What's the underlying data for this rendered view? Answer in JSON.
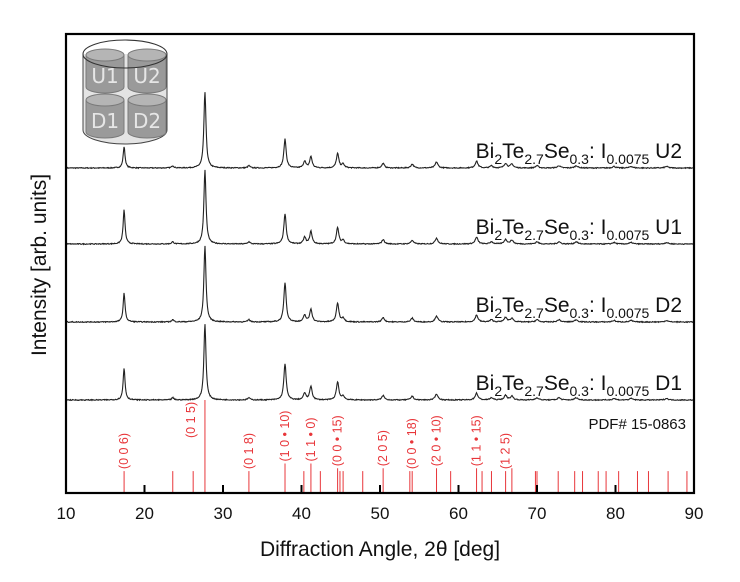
{
  "chart_data": {
    "type": "line",
    "title": "",
    "xlabel": "Diffraction Angle, 2θ [deg]",
    "ylabel": "Intensity [arb. units]",
    "xlim": [
      10,
      90
    ],
    "xticks": [
      10,
      20,
      30,
      40,
      50,
      60,
      70,
      80,
      90
    ],
    "grid": false,
    "series": [
      {
        "name": "U2",
        "label": {
          "base": "Bi",
          "s1": "2",
          "t": "Te",
          "s2": "2.7",
          "se": "Se",
          "s3": "0.3",
          "sep": ": I",
          "s4": "0.0075",
          "tag": "U2"
        },
        "peaks": [
          [
            17.4,
            0.28
          ],
          [
            23.6,
            0.03
          ],
          [
            27.7,
            1.0
          ],
          [
            33.3,
            0.03
          ],
          [
            37.9,
            0.38
          ],
          [
            40.4,
            0.09
          ],
          [
            41.2,
            0.15
          ],
          [
            44.6,
            0.19
          ],
          [
            45.3,
            0.05
          ],
          [
            50.4,
            0.06
          ],
          [
            54.1,
            0.05
          ],
          [
            57.2,
            0.08
          ],
          [
            62.3,
            0.09
          ],
          [
            64.2,
            0.03
          ],
          [
            66.0,
            0.06
          ],
          [
            66.8,
            0.05
          ],
          [
            70.0,
            0.03
          ],
          [
            72.8,
            0.03
          ],
          [
            75.0,
            0.03
          ],
          [
            79.8,
            0.02
          ],
          [
            82.0,
            0.02
          ],
          [
            86.5,
            0.02
          ]
        ]
      },
      {
        "name": "U1",
        "label": {
          "base": "Bi",
          "s1": "2",
          "t": "Te",
          "s2": "2.7",
          "se": "Se",
          "s3": "0.3",
          "sep": ": I",
          "s4": "0.0075",
          "tag": "U1"
        },
        "peaks": [
          [
            17.4,
            0.46
          ],
          [
            23.6,
            0.03
          ],
          [
            27.7,
            1.0
          ],
          [
            33.3,
            0.03
          ],
          [
            37.9,
            0.41
          ],
          [
            40.4,
            0.09
          ],
          [
            41.2,
            0.17
          ],
          [
            44.6,
            0.22
          ],
          [
            45.3,
            0.05
          ],
          [
            50.4,
            0.06
          ],
          [
            54.1,
            0.05
          ],
          [
            57.2,
            0.08
          ],
          [
            62.3,
            0.09
          ],
          [
            64.2,
            0.03
          ],
          [
            66.0,
            0.06
          ],
          [
            66.8,
            0.05
          ],
          [
            70.0,
            0.03
          ],
          [
            72.8,
            0.03
          ],
          [
            75.0,
            0.03
          ],
          [
            79.8,
            0.02
          ],
          [
            82.0,
            0.02
          ],
          [
            86.5,
            0.02
          ]
        ]
      },
      {
        "name": "D2",
        "label": {
          "base": "Bi",
          "s1": "2",
          "t": "Te",
          "s2": "2.7",
          "se": "Se",
          "s3": "0.3",
          "sep": ": I",
          "s4": "0.0075",
          "tag": "D2"
        },
        "peaks": [
          [
            17.4,
            0.38
          ],
          [
            23.6,
            0.03
          ],
          [
            27.7,
            1.0
          ],
          [
            33.3,
            0.03
          ],
          [
            37.9,
            0.52
          ],
          [
            40.4,
            0.09
          ],
          [
            41.2,
            0.17
          ],
          [
            44.6,
            0.25
          ],
          [
            45.3,
            0.05
          ],
          [
            50.4,
            0.06
          ],
          [
            54.1,
            0.05
          ],
          [
            57.2,
            0.08
          ],
          [
            62.3,
            0.09
          ],
          [
            64.2,
            0.03
          ],
          [
            66.0,
            0.06
          ],
          [
            66.8,
            0.05
          ],
          [
            70.0,
            0.03
          ],
          [
            72.8,
            0.03
          ],
          [
            75.0,
            0.03
          ],
          [
            79.8,
            0.02
          ],
          [
            82.0,
            0.02
          ],
          [
            86.5,
            0.02
          ]
        ]
      },
      {
        "name": "D1",
        "label": {
          "base": "Bi",
          "s1": "2",
          "t": "Te",
          "s2": "2.7",
          "se": "Se",
          "s3": "0.3",
          "sep": ": I",
          "s4": "0.0075",
          "tag": "D1"
        },
        "peaks": [
          [
            17.4,
            0.42
          ],
          [
            23.6,
            0.03
          ],
          [
            27.7,
            1.0
          ],
          [
            33.3,
            0.03
          ],
          [
            37.9,
            0.48
          ],
          [
            40.4,
            0.09
          ],
          [
            41.2,
            0.18
          ],
          [
            44.6,
            0.24
          ],
          [
            45.3,
            0.05
          ],
          [
            50.4,
            0.06
          ],
          [
            54.1,
            0.05
          ],
          [
            57.2,
            0.08
          ],
          [
            62.3,
            0.09
          ],
          [
            64.2,
            0.03
          ],
          [
            66.0,
            0.06
          ],
          [
            66.8,
            0.05
          ],
          [
            70.0,
            0.03
          ],
          [
            72.8,
            0.03
          ],
          [
            75.0,
            0.03
          ],
          [
            79.8,
            0.02
          ],
          [
            82.0,
            0.02
          ],
          [
            86.5,
            0.02
          ]
        ]
      }
    ],
    "reference": {
      "name": "PDF# 15-0863",
      "color": "#e8363a",
      "lines": [
        [
          17.4,
          0.22
        ],
        [
          23.6,
          0.22
        ],
        [
          26.2,
          0.22
        ],
        [
          27.7,
          1.0
        ],
        [
          33.3,
          0.22
        ],
        [
          37.9,
          0.3
        ],
        [
          40.3,
          0.22
        ],
        [
          41.2,
          0.3
        ],
        [
          42.4,
          0.22
        ],
        [
          44.6,
          0.25
        ],
        [
          44.9,
          0.22
        ],
        [
          45.3,
          0.22
        ],
        [
          47.8,
          0.22
        ],
        [
          50.4,
          0.25
        ],
        [
          53.8,
          0.22
        ],
        [
          54.1,
          0.22
        ],
        [
          57.2,
          0.25
        ],
        [
          59.0,
          0.22
        ],
        [
          62.3,
          0.25
        ],
        [
          63.0,
          0.22
        ],
        [
          64.2,
          0.22
        ],
        [
          66.0,
          0.22
        ],
        [
          66.8,
          0.25
        ],
        [
          69.8,
          0.22
        ],
        [
          70.0,
          0.22
        ],
        [
          72.7,
          0.22
        ],
        [
          74.8,
          0.22
        ],
        [
          75.8,
          0.22
        ],
        [
          77.8,
          0.22
        ],
        [
          78.8,
          0.22
        ],
        [
          80.4,
          0.22
        ],
        [
          82.8,
          0.22
        ],
        [
          84.2,
          0.22
        ],
        [
          86.7,
          0.22
        ],
        [
          89.1,
          0.22
        ]
      ],
      "hkl_labels": [
        {
          "x": 17.4,
          "text": "(0 0 6)",
          "dot": false
        },
        {
          "x": 26.2,
          "text": "(0 1 5)",
          "dot": false
        },
        {
          "x": 33.3,
          "text": "(0 1 8)",
          "dot": false
        },
        {
          "x": 37.9,
          "text": "(1 0 10)",
          "dot": true
        },
        {
          "x": 41.2,
          "text": "(1 1 0)",
          "dot": true
        },
        {
          "x": 44.6,
          "text": "(0 0 15)",
          "dot": true
        },
        {
          "x": 50.4,
          "text": "(2 0 5)",
          "dot": false
        },
        {
          "x": 54.1,
          "text": "(0 0 18)",
          "dot": true
        },
        {
          "x": 57.2,
          "text": "(2 0 10)",
          "dot": true
        },
        {
          "x": 62.3,
          "text": "(1 1 15)",
          "dot": true
        },
        {
          "x": 66.0,
          "text": "(1 2 5)",
          "dot": false
        }
      ]
    },
    "inset": {
      "type": "sample-position-diagram",
      "labels": [
        "U1",
        "U2",
        "D1",
        "D2"
      ]
    }
  }
}
